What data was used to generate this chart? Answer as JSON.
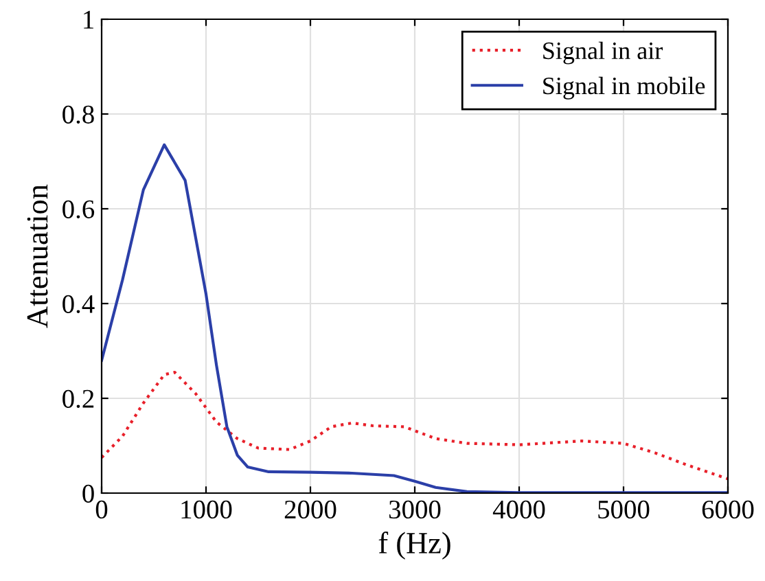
{
  "chart_data": {
    "type": "line",
    "xlabel": "f (Hz)",
    "ylabel": "Attenuation",
    "xlim": [
      0,
      6000
    ],
    "ylim": [
      0,
      1
    ],
    "xticks": [
      0,
      1000,
      2000,
      3000,
      4000,
      5000,
      6000
    ],
    "yticks": [
      0,
      0.2,
      0.4,
      0.6,
      0.8,
      1
    ],
    "grid": true,
    "legend": "top right",
    "series": [
      {
        "name": "Signal in air",
        "color": "#e8202a",
        "line_style": "dotted",
        "x": [
          0,
          200,
          400,
          600,
          700,
          900,
          1100,
          1300,
          1500,
          1800,
          2000,
          2200,
          2400,
          2600,
          2900,
          3200,
          3500,
          4000,
          4300,
          4600,
          5000,
          5300,
          5600,
          6000
        ],
        "values": [
          0.075,
          0.12,
          0.19,
          0.25,
          0.255,
          0.21,
          0.15,
          0.115,
          0.095,
          0.092,
          0.11,
          0.14,
          0.148,
          0.142,
          0.14,
          0.115,
          0.105,
          0.102,
          0.106,
          0.11,
          0.105,
          0.085,
          0.06,
          0.03
        ]
      },
      {
        "name": "Signal in mobile",
        "color": "#2b3fa8",
        "line_style": "solid",
        "x": [
          0,
          200,
          400,
          600,
          800,
          1000,
          1100,
          1200,
          1300,
          1400,
          1600,
          2000,
          2400,
          2800,
          3000,
          3200,
          3500,
          4000,
          5000,
          6000
        ],
        "values": [
          0.28,
          0.45,
          0.64,
          0.735,
          0.66,
          0.42,
          0.27,
          0.14,
          0.08,
          0.055,
          0.045,
          0.044,
          0.042,
          0.037,
          0.025,
          0.012,
          0.003,
          0.001,
          0.001,
          0.001
        ]
      }
    ]
  }
}
